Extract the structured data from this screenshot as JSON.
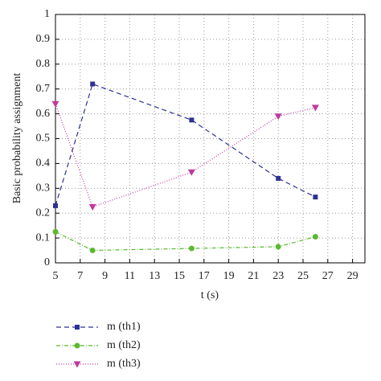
{
  "chart_data": {
    "type": "line",
    "x_label": "t (s)",
    "y_label": "Basic probability assignment",
    "xlim": [
      5,
      30
    ],
    "xticks": [
      5,
      7,
      9,
      11,
      13,
      15,
      17,
      19,
      21,
      23,
      25,
      27,
      29
    ],
    "ylim": [
      0,
      1
    ],
    "yticks": [
      0,
      0.1,
      0.2,
      0.3,
      0.4,
      0.5,
      0.6,
      0.7,
      0.8,
      0.9,
      1
    ],
    "grid": true,
    "x": [
      5,
      8,
      16,
      23,
      26
    ],
    "series": [
      {
        "name": "m (th1)",
        "color": "#2e3192",
        "dash": "6 4",
        "marker": "square",
        "values": [
          0.23,
          0.72,
          0.575,
          0.34,
          0.265
        ]
      },
      {
        "name": "m (th2)",
        "color": "#5cb832",
        "dash": "5 2 1 2",
        "marker": "circle",
        "values": [
          0.125,
          0.05,
          0.058,
          0.065,
          0.105
        ]
      },
      {
        "name": "m (th3)",
        "color": "#c0399f",
        "dash": "1 2",
        "marker": "triangle-down",
        "values": [
          0.64,
          0.225,
          0.365,
          0.59,
          0.625
        ]
      }
    ]
  }
}
